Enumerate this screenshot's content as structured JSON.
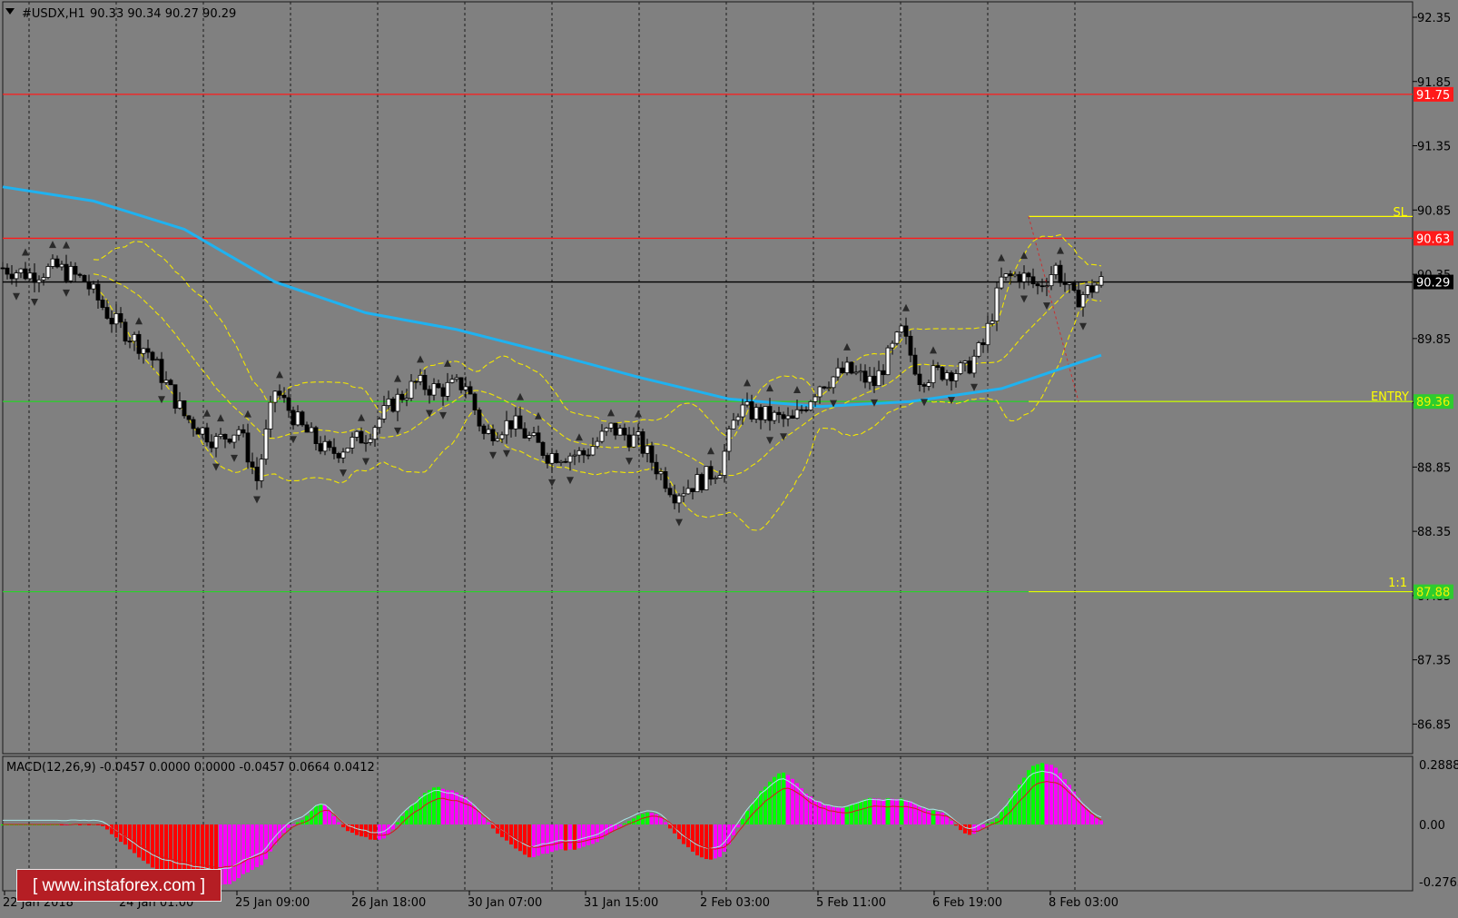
{
  "header": {
    "title": "#USDX,H1",
    "ohlc": "90.33 90.34 90.27 90.29"
  },
  "main_axis": {
    "ticks": [
      "92.35",
      "91.85",
      "91.35",
      "90.85",
      "90.35",
      "89.85",
      "89.35",
      "88.85",
      "88.35",
      "87.85",
      "87.35",
      "86.85"
    ]
  },
  "price_labels": {
    "resistance_high": "91.75",
    "resistance": "90.63",
    "current": "90.29",
    "entry": "89.36",
    "target": "87.88"
  },
  "level_labels": {
    "sl": "SL",
    "entry": "ENTRY",
    "ratio": "1:1"
  },
  "macd": {
    "label": "MACD(12,26,9) -0.0457 0.0000 0.0000 -0.0457 0.0664 0.0412",
    "ticks": [
      "0.2888",
      "0.00",
      "-0.2765"
    ]
  },
  "time_axis": {
    "labels": [
      "22 Jan 2018",
      "24 Jan 01:00",
      "25 Jan 09:00",
      "26 Jan 18:00",
      "30 Jan 07:00",
      "31 Jan 15:00",
      "2 Feb 03:00",
      "5 Feb 11:00",
      "6 Feb 19:00",
      "8 Feb 03:00"
    ]
  },
  "watermark": "[  www.instaforex.com  ]",
  "colors": {
    "background": "#808080",
    "grid": "#1a1a1a",
    "red_level": "#ff1a1a",
    "green_level": "#2ecc2e",
    "yellow": "#ffff00",
    "ma200": "#1fb2f0",
    "bollinger": "#f2e600",
    "macd_up": "#00ff00",
    "macd_down": "#ff0000",
    "macd_pink": "#ff00ff",
    "macd_signal": "#d51818",
    "macd_line": "#a6e8e8"
  },
  "chart_data": {
    "type": "candlestick",
    "symbol": "#USDX",
    "timeframe": "H1",
    "ylim": [
      86.62,
      92.47
    ],
    "levels": [
      {
        "label": "",
        "value": 91.75,
        "color": "red"
      },
      {
        "label": "",
        "value": 90.63,
        "color": "red"
      },
      {
        "label": "SL",
        "value": 90.8,
        "color": "yellow"
      },
      {
        "label": "",
        "value": 90.29,
        "color": "black"
      },
      {
        "label": "ENTRY",
        "value": 89.36,
        "color": "green"
      },
      {
        "label": "1:1",
        "value": 87.88,
        "color": "green"
      }
    ],
    "close_path": [
      [
        0,
        90.4
      ],
      [
        30,
        90.35
      ],
      [
        60,
        90.4
      ],
      [
        90,
        90.3
      ],
      [
        120,
        90.0
      ],
      [
        160,
        89.75
      ],
      [
        200,
        89.25
      ],
      [
        235,
        89.05
      ],
      [
        260,
        89.15
      ],
      [
        280,
        88.75
      ],
      [
        300,
        89.45
      ],
      [
        330,
        89.15
      ],
      [
        360,
        88.95
      ],
      [
        400,
        89.1
      ],
      [
        430,
        89.35
      ],
      [
        455,
        89.5
      ],
      [
        480,
        89.45
      ],
      [
        510,
        89.5
      ],
      [
        530,
        89.1
      ],
      [
        560,
        89.2
      ],
      [
        600,
        88.95
      ],
      [
        640,
        88.95
      ],
      [
        670,
        89.15
      ],
      [
        700,
        89.05
      ],
      [
        720,
        88.85
      ],
      [
        740,
        88.65
      ],
      [
        770,
        88.75
      ],
      [
        790,
        88.85
      ],
      [
        810,
        89.3
      ],
      [
        840,
        89.25
      ],
      [
        870,
        89.2
      ],
      [
        900,
        89.5
      ],
      [
        930,
        89.6
      ],
      [
        960,
        89.5
      ],
      [
        990,
        89.9
      ],
      [
        1010,
        89.55
      ],
      [
        1040,
        89.6
      ],
      [
        1060,
        89.6
      ],
      [
        1080,
        89.8
      ],
      [
        1100,
        90.3
      ],
      [
        1120,
        90.35
      ],
      [
        1140,
        90.25
      ],
      [
        1160,
        90.4
      ],
      [
        1180,
        90.15
      ],
      [
        1210,
        90.29
      ]
    ],
    "ma200": [
      [
        0,
        91.03
      ],
      [
        100,
        90.92
      ],
      [
        200,
        90.7
      ],
      [
        300,
        90.29
      ],
      [
        400,
        90.05
      ],
      [
        500,
        89.92
      ],
      [
        600,
        89.74
      ],
      [
        700,
        89.55
      ],
      [
        800,
        89.38
      ],
      [
        900,
        89.32
      ],
      [
        1000,
        89.36
      ],
      [
        1100,
        89.46
      ],
      [
        1210,
        89.72
      ]
    ],
    "macd_histogram_range": [
      -0.2765,
      0.2888
    ]
  }
}
